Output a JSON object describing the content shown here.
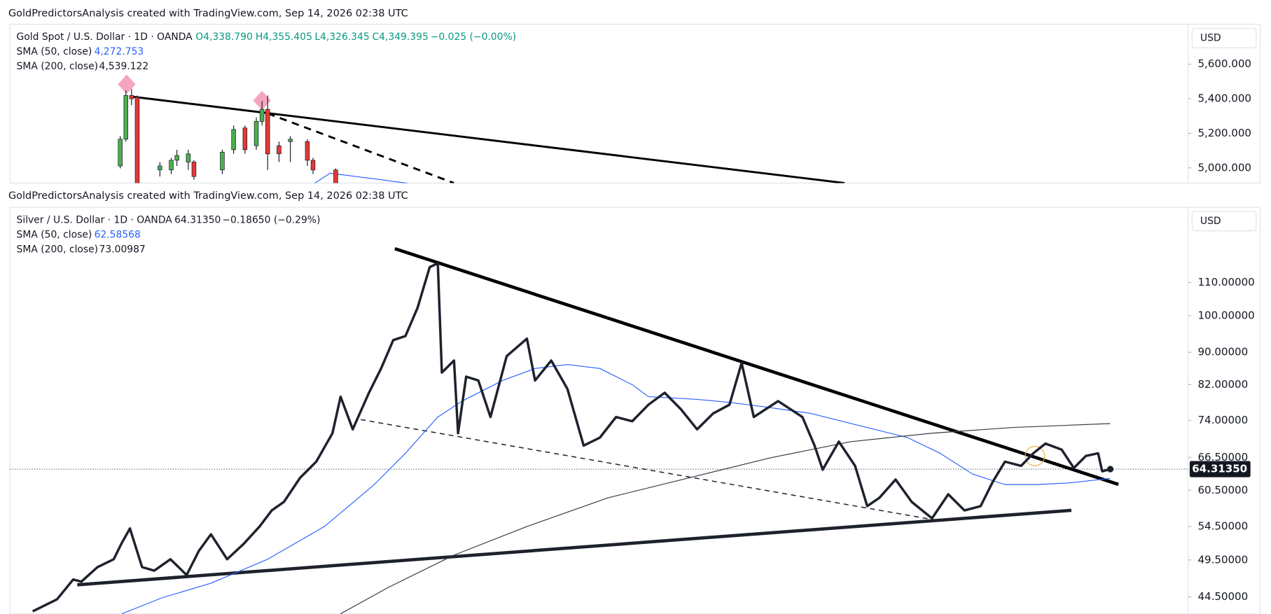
{
  "chart_data": [
    {
      "type": "candlestick",
      "header": "GoldPredictorsAnalysis created with TradingView.com, Sep 14, 2026 02:38 UTC",
      "title": "Gold Spot / U.S. Dollar · 1D · OANDA",
      "ohlc_labels": [
        "O4,338.790",
        "H4,355.405",
        "L4,326.345",
        "C4,349.395"
      ],
      "change": "−0.025 (−0.00%)",
      "currency": "USD",
      "x": [
        2,
        3,
        4,
        5,
        9,
        11,
        12,
        14,
        15,
        20,
        22,
        24,
        26,
        27,
        28,
        30,
        32,
        35,
        36,
        40
      ],
      "open": [
        5011,
        5166,
        5419,
        5409,
        4988,
        4988,
        5044,
        5034,
        5034,
        4988,
        5105,
        5231,
        5128,
        5269,
        5339,
        5128,
        5152,
        5152,
        5044,
        4988
      ],
      "high": [
        5184,
        5447,
        5456,
        5419,
        5034,
        5058,
        5105,
        5105,
        5044,
        5105,
        5245,
        5245,
        5292,
        5386,
        5419,
        5152,
        5184,
        5166,
        5058,
        4997
      ],
      "low": [
        4997,
        5152,
        5363,
        4900,
        4950,
        4964,
        5011,
        4988,
        4931,
        4964,
        5081,
        5081,
        5105,
        5245,
        4988,
        5034,
        5034,
        5011,
        4964,
        4900
      ],
      "close": [
        5166,
        5419,
        5400,
        4900,
        5011,
        5044,
        5072,
        5081,
        4950,
        5091,
        5222,
        5105,
        5269,
        5339,
        5081,
        5081,
        5166,
        5044,
        4988,
        4900
      ],
      "up_color": "#4caf50",
      "down_color": "#e53935",
      "indicators": [
        {
          "name": "SMA (50, close)",
          "last_label": "4,272.753",
          "color": "#2962ff",
          "x": [
            36,
            39,
            48,
            54
          ],
          "values": [
            4905,
            4969,
            4931,
            4905
          ]
        },
        {
          "name": "SMA (200, close)",
          "last_label": "4,539.122",
          "color": "#131722"
        }
      ],
      "xlim": [
        -17.43,
        190.29
      ],
      "ylim": [
        4912,
        5831
      ],
      "yticks": [
        {
          "value": 5000,
          "label": "5,000.000"
        },
        {
          "value": 5200,
          "label": "5,200.000"
        },
        {
          "value": 5400,
          "label": "5,400.000"
        },
        {
          "value": 5600,
          "label": "5,600.000"
        }
      ]
    },
    {
      "type": "line",
      "header": "GoldPredictorsAnalysis created with TradingView.com, Sep 14, 2026 02:38 UTC",
      "title": "Silver / U.S. Dollar · 1D · OANDA",
      "last_label": "64.31350",
      "change": "−0.18650 (−0.29%)",
      "currency": "USD",
      "log_scale": true,
      "price": {
        "color": "#1e222d",
        "x": [
          0,
          6,
          10,
          12,
          16,
          20,
          22,
          24,
          27,
          30,
          34,
          38,
          41,
          44,
          48,
          52,
          56,
          59,
          62,
          66,
          70,
          74,
          76,
          79,
          83,
          86,
          89,
          92,
          95,
          98,
          100,
          101,
          104,
          105,
          107,
          110,
          113,
          117,
          122,
          124,
          128,
          132,
          136,
          140,
          144,
          148,
          152,
          156,
          160,
          164,
          168,
          172,
          175,
          178,
          184,
          190,
          193,
          195,
          199,
          203,
          206,
          209,
          213,
          217,
          222,
          226,
          230,
          234,
          237,
          240,
          244,
          247,
          250,
          254,
          257,
          260,
          263,
          264,
          266
        ],
        "values": [
          42.7,
          44.2,
          46.8,
          46.5,
          48.5,
          49.6,
          52.0,
          54.2,
          48.5,
          48.0,
          49.6,
          47.4,
          50.8,
          53.3,
          49.6,
          51.8,
          54.5,
          57.1,
          58.5,
          62.7,
          65.7,
          71.3,
          79.2,
          72.1,
          80.1,
          85.9,
          93.2,
          94.3,
          102.3,
          115.0,
          116.3,
          84.9,
          87.9,
          71.3,
          83.9,
          83.0,
          74.7,
          89.0,
          93.6,
          83.0,
          87.9,
          81.0,
          68.8,
          70.4,
          74.7,
          73.8,
          77.4,
          80.1,
          76.4,
          72.1,
          75.5,
          77.4,
          87.3,
          74.7,
          78.2,
          74.7,
          68.8,
          64.2,
          69.6,
          64.9,
          57.8,
          59.2,
          62.4,
          58.5,
          55.8,
          59.8,
          57.1,
          57.8,
          62.0,
          65.7,
          64.9,
          67.3,
          69.2,
          68.0,
          64.5,
          66.8,
          67.3,
          63.9,
          64.3
        ]
      },
      "indicators": [
        {
          "name": "SMA (50, close)",
          "last_label": "62.58568",
          "color": "#2962ff",
          "x": [
            22,
            32,
            44,
            58,
            72,
            84,
            92,
            100,
            106,
            116,
            124,
            132,
            140,
            148,
            152,
            164,
            172,
            180,
            192,
            204,
            216,
            224,
            232,
            240,
            248,
            256,
            266
          ],
          "values": [
            42.4,
            44.4,
            46.3,
            49.6,
            54.5,
            61.3,
            67.3,
            74.7,
            78.2,
            83.0,
            85.9,
            86.9,
            85.9,
            82.0,
            79.2,
            78.6,
            77.9,
            77.0,
            75.5,
            72.9,
            70.4,
            67.3,
            63.4,
            61.5,
            61.5,
            61.8,
            62.6
          ]
        },
        {
          "name": "SMA (200, close)",
          "last_label": "73.00987",
          "color": "#363a45",
          "x": [
            76,
            88,
            104,
            122,
            142,
            162,
            182,
            202,
            222,
            242,
            266
          ],
          "values": [
            42.4,
            45.8,
            50.2,
            54.5,
            59.2,
            62.7,
            66.4,
            69.6,
            71.3,
            72.5,
            73.3
          ]
        }
      ],
      "xlim": [
        -5.6,
        285.2
      ],
      "ylim": [
        42.37,
        136.6
      ],
      "yticks": [
        {
          "value": 44.5,
          "label": "44.50000"
        },
        {
          "value": 49.5,
          "label": "49.50000"
        },
        {
          "value": 54.5,
          "label": "54.50000"
        },
        {
          "value": 60.5,
          "label": "60.50000"
        },
        {
          "value": 66.5,
          "label": "66.50000"
        },
        {
          "value": 74,
          "label": "74.00000"
        },
        {
          "value": 82,
          "label": "82.00000"
        },
        {
          "value": 90,
          "label": "90.00000"
        },
        {
          "value": 100,
          "label": "100.00000"
        },
        {
          "value": 110,
          "label": "110.00000"
        }
      ]
    }
  ]
}
